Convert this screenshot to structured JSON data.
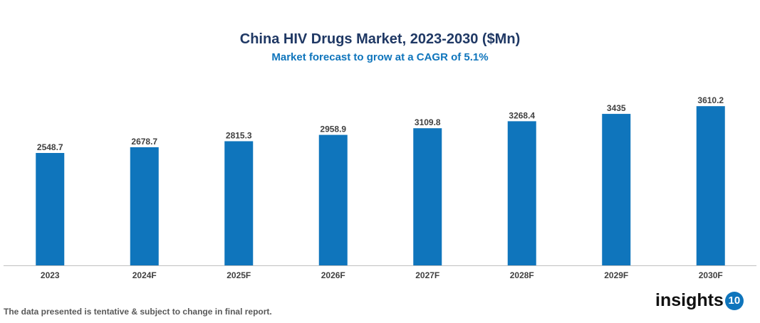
{
  "chart_data": {
    "type": "bar",
    "title": "China HIV Drugs Market, 2023-2030 ($Mn)",
    "subtitle": "Market forecast to grow at a CAGR of 5.1%",
    "categories": [
      "2023",
      "2024F",
      "2025F",
      "2026F",
      "2027F",
      "2028F",
      "2029F",
      "2030F"
    ],
    "values": [
      2548.7,
      2678.7,
      2815.3,
      2958.9,
      3109.8,
      3268.4,
      3435,
      3610.2
    ],
    "ylim": [
      0,
      3920
    ],
    "grid": false,
    "bar_color": "#0f75bc"
  },
  "footer": {
    "note": "The data presented is tentative & subject to change in final report."
  },
  "logo": {
    "text": "insights",
    "badge": "10"
  }
}
